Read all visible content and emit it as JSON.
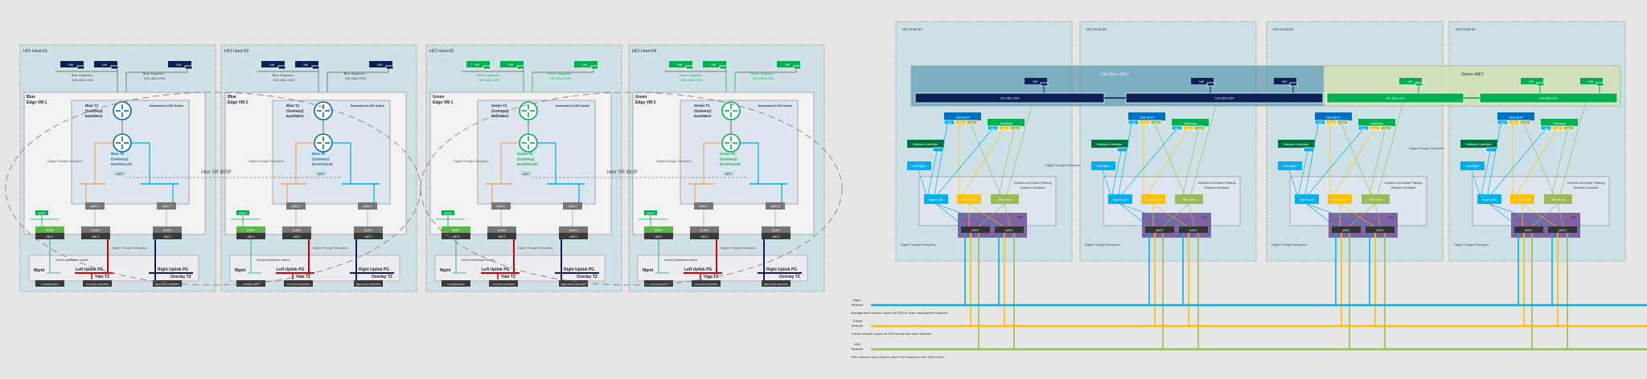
{
  "colors": {
    "blue": "#0a6e8c",
    "navy": "#0b2155",
    "green": "#00b050",
    "orange": "#f4a460",
    "sky": "#00a8e8",
    "red": "#d00000",
    "yellow": "#ffc000",
    "hnv": "#9bbb59",
    "purple": "#8064a2",
    "darkgreen": "#00703c",
    "slb": "#0070c0"
  },
  "watermark": "Digital Thought Disruption",
  "left": {
    "hosts": [
      {
        "title": "HCI Host-01",
        "edge": [
          "Blue",
          "Edge VM 1"
        ],
        "theme": "blue",
        "t1": [
          "Blue T1",
          "(Gateway)",
          "East/West"
        ],
        "t0": [
          "Blue T0",
          "(Gateway)",
          "North/South"
        ],
        "seg1": [
          "Blue Segment –",
          "192.168.1.0/24"
        ],
        "seg2": [
          "Blue Segment –",
          "192.168.0.0/24"
        ]
      },
      {
        "title": "HCI Host-02",
        "edge": [
          "Blue",
          "Edge VM 2"
        ],
        "theme": "blue",
        "t1": [
          "Blue T1",
          "(Gateway)",
          "East/West"
        ],
        "t0": [
          "Blue T0",
          "(Gateway)",
          "North/South"
        ],
        "seg1": [
          "Blue Segment –",
          "192.168.1.0/24"
        ],
        "seg2": [
          "Blue Segment –",
          "192.168.0.0/24"
        ]
      },
      {
        "title": "HCI Host-03",
        "edge": [
          "Green",
          "Edge VM 1"
        ],
        "theme": "green",
        "t1": [
          "Green T1",
          "(Gateway)",
          "East/West"
        ],
        "t0": [
          "Green T0",
          "(Gateway)",
          "North/South"
        ],
        "seg1": [
          "Green Segment –",
          "192.168.1.0/24"
        ],
        "seg2": [
          "Green Segment –",
          "192.168.0.0/24"
        ]
      },
      {
        "title": "HCI Host-04",
        "edge": [
          "Green",
          "Edge VM 2"
        ],
        "theme": "green",
        "t1": [
          "Green T1",
          "(Gateway)",
          "East/West"
        ],
        "t0": [
          "Green T0",
          "(Gateway)",
          "North/South"
        ],
        "seg1": [
          "Green Segment –",
          "192.168.1.0/24"
        ],
        "seg2": [
          "Green Segment –",
          "192.168.0.0/24"
        ]
      }
    ],
    "vm": "VM",
    "vnic": "vNIC",
    "switch": "Embedded N-VDS Switch",
    "ibgp": "iBGP",
    "uplinks": [
      "uplink-1",
      "uplink-2"
    ],
    "nics": [
      {
        "top": "MGMT",
        "bottom": "vNIC1"
      },
      {
        "top": "fp-eth0",
        "bottom": "vNIC2"
      },
      {
        "top": "fp-eth1",
        "bottom": "vNIC3"
      }
    ],
    "vds": "Virtual distributed switch",
    "mgmt": "Mgmt",
    "left_pg": "Left Uplink PG",
    "vlan_tz": "Vlan TZ",
    "right_pg": "Right Uplink PG",
    "overlay_tz": "Overlay TZ",
    "pg_ports": [
      "VmnetMgmtNIC1",
      "Left Uplink-UplinkNIC2",
      "Right Uplink-UplinkNIC3"
    ],
    "inter_sr": "Inter SR iBGP"
  },
  "right": {
    "hosts": [
      "HCI Host-01",
      "HCI Host-02",
      "HCI Host-03",
      "HCI Host-04"
    ],
    "vnets": [
      {
        "label": "Dark Blue vNET",
        "subnets": [
          "192.168.1.0/24",
          "192.168.0.0/24"
        ]
      },
      {
        "label": "Green vNET",
        "subnets": [
          "192.168.1.0/24",
          "192.168.0.0/24"
        ]
      }
    ],
    "vm": "VM",
    "vnic": "vNIC",
    "slb": "SLB MUX",
    "gateway": "Gateway",
    "nc": "Network Controller",
    "host_mgmt": "Host Mgmt",
    "vswitch": [
      "vSwitch-01/Virtual Filtering",
      "Platform Enabled"
    ],
    "vlans": [
      "Mgmt VLAN",
      "Transit VLAN",
      "HNV VLAN"
    ],
    "set": "SET",
    "pnics": [
      "pNIC1",
      "pNIC2"
    ],
    "networks": [
      {
        "label": [
          "Mgmt.",
          "Network"
        ],
        "note": "Management network routes off SDN to other management subnets",
        "color": "#00b0f0"
      },
      {
        "label": [
          "Transit",
          "Network"
        ],
        "note": "Transit network routes off SDN to external client subnets",
        "color": "#ffc000"
      },
      {
        "label": [
          "HNV",
          "Network"
        ],
        "note": "HNV network only routes to other HNV subnets in the SDN Cloud",
        "color": "#9bbb59"
      }
    ]
  }
}
